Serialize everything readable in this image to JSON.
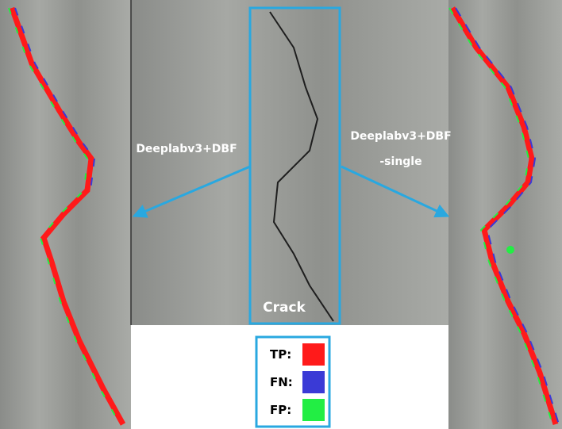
{
  "labels": {
    "left": "Deeplabv3+DBF",
    "right": [
      "Deeplabv3+DBF",
      "-single"
    ],
    "center": "Crack"
  },
  "legend": [
    {
      "label": "TP:",
      "color": "#ff1a1a"
    },
    {
      "label": "FN:",
      "color": "#3a3ad6"
    },
    {
      "label": "FP:",
      "color": "#22ee44"
    }
  ]
}
